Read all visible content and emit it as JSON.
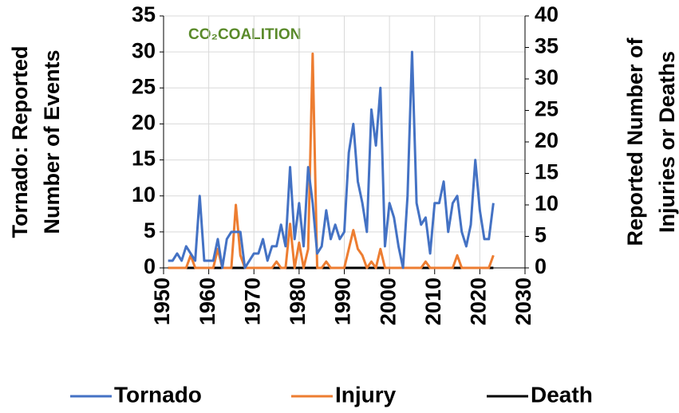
{
  "chart_data": {
    "type": "line",
    "logo": "CO₂COALITION",
    "ylabel": [
      "Tornado: Reported",
      "Number of Events"
    ],
    "y2label": [
      "Reported Number of",
      "Injuries or Deaths"
    ],
    "x": [
      1951,
      1952,
      1953,
      1954,
      1955,
      1956,
      1957,
      1958,
      1959,
      1960,
      1961,
      1962,
      1963,
      1964,
      1965,
      1966,
      1967,
      1968,
      1969,
      1970,
      1971,
      1972,
      1973,
      1974,
      1975,
      1976,
      1977,
      1978,
      1979,
      1980,
      1981,
      1982,
      1983,
      1984,
      1985,
      1986,
      1987,
      1988,
      1989,
      1990,
      1991,
      1992,
      1993,
      1994,
      1995,
      1996,
      1997,
      1998,
      1999,
      2000,
      2001,
      2002,
      2003,
      2004,
      2005,
      2006,
      2007,
      2008,
      2009,
      2010,
      2011,
      2012,
      2013,
      2014,
      2015,
      2016,
      2017,
      2018,
      2019,
      2020,
      2021,
      2022,
      2023
    ],
    "series": [
      {
        "name": "Tornado",
        "color": "#4472c4",
        "axis": "y",
        "values": [
          1,
          1,
          2,
          1,
          3,
          2,
          1,
          10,
          1,
          1,
          1,
          4,
          0,
          4,
          5,
          5,
          5,
          0,
          1,
          2,
          2,
          4,
          1,
          3,
          3,
          6,
          3,
          14,
          4,
          9,
          3,
          14,
          9,
          2,
          3,
          8,
          4,
          6,
          4,
          5,
          16,
          20,
          12,
          9,
          5,
          22,
          17,
          25,
          3,
          9,
          7,
          3,
          0,
          10,
          30,
          9,
          6,
          7,
          2,
          9,
          9,
          12,
          5,
          9,
          10,
          5,
          3,
          6,
          15,
          8,
          4,
          4,
          9
        ]
      },
      {
        "name": "Injury",
        "color": "#ed7d31",
        "axis": "y2",
        "values": [
          0,
          0,
          0,
          0,
          0,
          2,
          0,
          0,
          0,
          0,
          0,
          3,
          0,
          0,
          0,
          10,
          2,
          0,
          0,
          0,
          0,
          0,
          0,
          0,
          1,
          0,
          0,
          7,
          0,
          4,
          0,
          3,
          34,
          0,
          0,
          1,
          0,
          0,
          0,
          0,
          3,
          6,
          3,
          2,
          0,
          1,
          0,
          3,
          0,
          0,
          0,
          0,
          0,
          0,
          0,
          0,
          0,
          1,
          0,
          0,
          0,
          0,
          0,
          0,
          2,
          0,
          0,
          0,
          0,
          0,
          0,
          0,
          2
        ]
      },
      {
        "name": "Death",
        "color": "#000000",
        "axis": "y2",
        "values": [
          0,
          0,
          0,
          0,
          0,
          0,
          0,
          0,
          0,
          0,
          0,
          0,
          0,
          0,
          0,
          0,
          0,
          0,
          0,
          0,
          0,
          0,
          0,
          0,
          0,
          0,
          0,
          0,
          0,
          0,
          0,
          0,
          0,
          0,
          0,
          0,
          0,
          0,
          0,
          0,
          0,
          0,
          0,
          0,
          0,
          0,
          0,
          0,
          0,
          0,
          0,
          0,
          0,
          0,
          0,
          0,
          0,
          0,
          0,
          0,
          0,
          0,
          0,
          0,
          0,
          0,
          0,
          0,
          0,
          0,
          0,
          0,
          0
        ]
      }
    ],
    "xlim": [
      1950,
      2030
    ],
    "xticks": [
      1950,
      1960,
      1970,
      1980,
      1990,
      2000,
      2010,
      2020,
      2030
    ],
    "ylim": [
      0,
      35
    ],
    "yticks": [
      0,
      5,
      10,
      15,
      20,
      25,
      30,
      35
    ],
    "y2lim": [
      0,
      40
    ],
    "y2ticks": [
      0,
      5,
      10,
      15,
      20,
      25,
      30,
      35,
      40
    ],
    "grid": true,
    "legend": "bottom"
  }
}
